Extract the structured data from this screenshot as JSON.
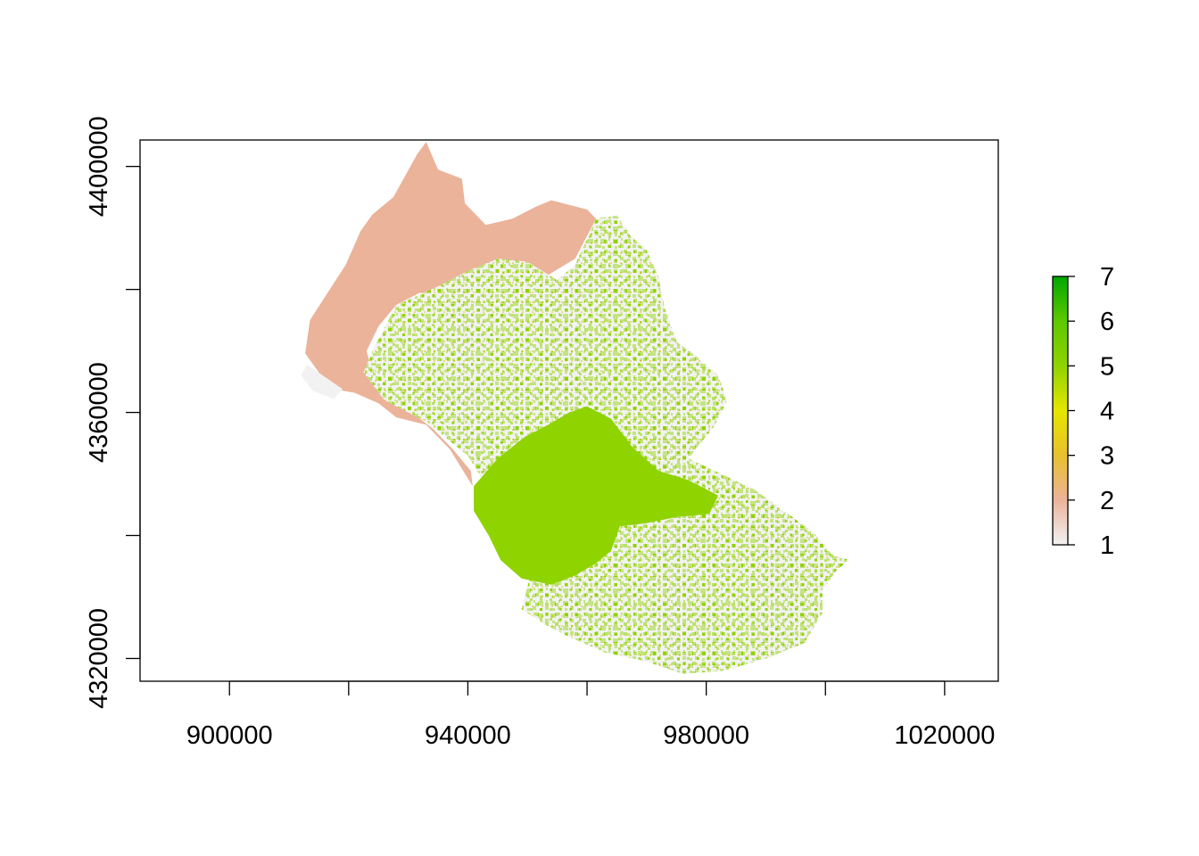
{
  "map": {
    "type": "raster",
    "x_axis": {
      "range": [
        885000,
        1029000
      ],
      "ticks": [
        900000,
        920000,
        940000,
        960000,
        980000,
        1000000,
        1020000
      ],
      "labels": [
        {
          "value": 900000,
          "text": "900000"
        },
        {
          "value": 940000,
          "text": "940000"
        },
        {
          "value": 980000,
          "text": "980000"
        },
        {
          "value": 1020000,
          "text": "1020000"
        }
      ]
    },
    "y_axis": {
      "range": [
        4316300,
        4404300
      ],
      "ticks": [
        4320000,
        4340000,
        4360000,
        4380000,
        4400000
      ],
      "labels": [
        {
          "value": 4320000,
          "text": "4320000"
        },
        {
          "value": 4360000,
          "text": "4360000"
        },
        {
          "value": 4400000,
          "text": "4400000"
        }
      ]
    },
    "legend": {
      "placement": "right",
      "min": 1,
      "max": 7,
      "ticks": [
        {
          "value": 1,
          "text": "1"
        },
        {
          "value": 2,
          "text": "2"
        },
        {
          "value": 3,
          "text": "3"
        },
        {
          "value": 4,
          "text": "4"
        },
        {
          "value": 5,
          "text": "5"
        },
        {
          "value": 6,
          "text": "6"
        },
        {
          "value": 7,
          "text": "7"
        }
      ],
      "colors": [
        "#f2f2f2",
        "#ebb39a",
        "#e8c02e",
        "#e6e600",
        "#8fd300",
        "#5ec800",
        "#00a600"
      ]
    },
    "regions": [
      {
        "value": 2,
        "color": "#ebb39a",
        "outline": [
          [
            912700,
            4369600
          ],
          [
            913500,
            4375000
          ],
          [
            916500,
            4379500
          ],
          [
            919500,
            4384000
          ],
          [
            922000,
            4389500
          ],
          [
            924000,
            4392200
          ],
          [
            927500,
            4395000
          ],
          [
            931500,
            4402000
          ],
          [
            933000,
            4404000
          ],
          [
            935000,
            4399500
          ],
          [
            939000,
            4398000
          ],
          [
            939500,
            4394000
          ],
          [
            943000,
            4390500
          ],
          [
            947500,
            4391500
          ],
          [
            951500,
            4393500
          ],
          [
            954000,
            4394500
          ],
          [
            960000,
            4393000
          ],
          [
            961500,
            4391500
          ],
          [
            958000,
            4385000
          ],
          [
            952000,
            4381500
          ],
          [
            946000,
            4381000
          ],
          [
            940000,
            4379500
          ],
          [
            935000,
            4378500
          ],
          [
            932000,
            4379500
          ],
          [
            928000,
            4377500
          ],
          [
            925000,
            4374000
          ],
          [
            923000,
            4370000
          ],
          [
            924000,
            4366500
          ],
          [
            928000,
            4364000
          ],
          [
            930500,
            4360000
          ],
          [
            934000,
            4357500
          ],
          [
            937500,
            4354000
          ],
          [
            940500,
            4350500
          ],
          [
            940800,
            4348000
          ],
          [
            937000,
            4354000
          ],
          [
            933000,
            4358000
          ],
          [
            928000,
            4359200
          ],
          [
            925000,
            4361500
          ],
          [
            921000,
            4363200
          ],
          [
            917500,
            4363800
          ],
          [
            915000,
            4366500
          ]
        ]
      },
      {
        "value": 1,
        "color": "#f2f2f2",
        "outline": [
          [
            912000,
            4366000
          ],
          [
            914000,
            4363500
          ],
          [
            917500,
            4362200
          ],
          [
            919000,
            4363800
          ],
          [
            916000,
            4365800
          ],
          [
            913000,
            4367800
          ]
        ]
      },
      {
        "value": 1,
        "color": "#f2f2f2",
        "outline": [
          [
            924000,
            4370000
          ],
          [
            928000,
            4377500
          ],
          [
            935000,
            4380500
          ],
          [
            940000,
            4383000
          ],
          [
            945000,
            4385000
          ],
          [
            950000,
            4384500
          ],
          [
            955000,
            4381500
          ],
          [
            958000,
            4384000
          ],
          [
            961500,
            4391500
          ],
          [
            965000,
            4392000
          ],
          [
            967500,
            4388500
          ],
          [
            970000,
            4386500
          ],
          [
            972000,
            4382000
          ],
          [
            973000,
            4377000
          ],
          [
            975000,
            4371500
          ],
          [
            978500,
            4369000
          ],
          [
            982000,
            4366000
          ],
          [
            983500,
            4362000
          ],
          [
            981500,
            4358000
          ],
          [
            977000,
            4352500
          ],
          [
            982500,
            4350000
          ],
          [
            988000,
            4347500
          ],
          [
            993000,
            4344000
          ],
          [
            998000,
            4340500
          ],
          [
            1001000,
            4337000
          ],
          [
            1004000,
            4336000
          ],
          [
            1002000,
            4334500
          ],
          [
            999500,
            4331000
          ],
          [
            999500,
            4327500
          ],
          [
            996500,
            4322500
          ],
          [
            990000,
            4320000
          ],
          [
            983000,
            4318000
          ],
          [
            976000,
            4317500
          ],
          [
            970000,
            4319500
          ],
          [
            963000,
            4321000
          ],
          [
            957000,
            4323500
          ],
          [
            953000,
            4325500
          ],
          [
            949000,
            4328000
          ],
          [
            952000,
            4339000
          ],
          [
            945000,
            4345000
          ],
          [
            940000,
            4353000
          ],
          [
            933000,
            4358500
          ],
          [
            926000,
            4362000
          ],
          [
            922500,
            4366500
          ]
        ]
      },
      {
        "value": 5,
        "color": "#8fd300",
        "outline": [
          [
            941000,
            4348000
          ],
          [
            945000,
            4352500
          ],
          [
            949500,
            4356000
          ],
          [
            953500,
            4358000
          ],
          [
            957000,
            4360000
          ],
          [
            960000,
            4361000
          ],
          [
            964000,
            4359000
          ],
          [
            967500,
            4354500
          ],
          [
            972000,
            4350500
          ],
          [
            977000,
            4349000
          ],
          [
            982000,
            4346500
          ],
          [
            980500,
            4343500
          ],
          [
            975000,
            4343000
          ],
          [
            970000,
            4342000
          ],
          [
            965500,
            4341500
          ],
          [
            964000,
            4337500
          ],
          [
            961500,
            4335500
          ],
          [
            958000,
            4333500
          ],
          [
            954000,
            4332000
          ],
          [
            949000,
            4333000
          ],
          [
            945500,
            4336000
          ],
          [
            943500,
            4340000
          ],
          [
            941000,
            4344000
          ]
        ]
      }
    ]
  }
}
